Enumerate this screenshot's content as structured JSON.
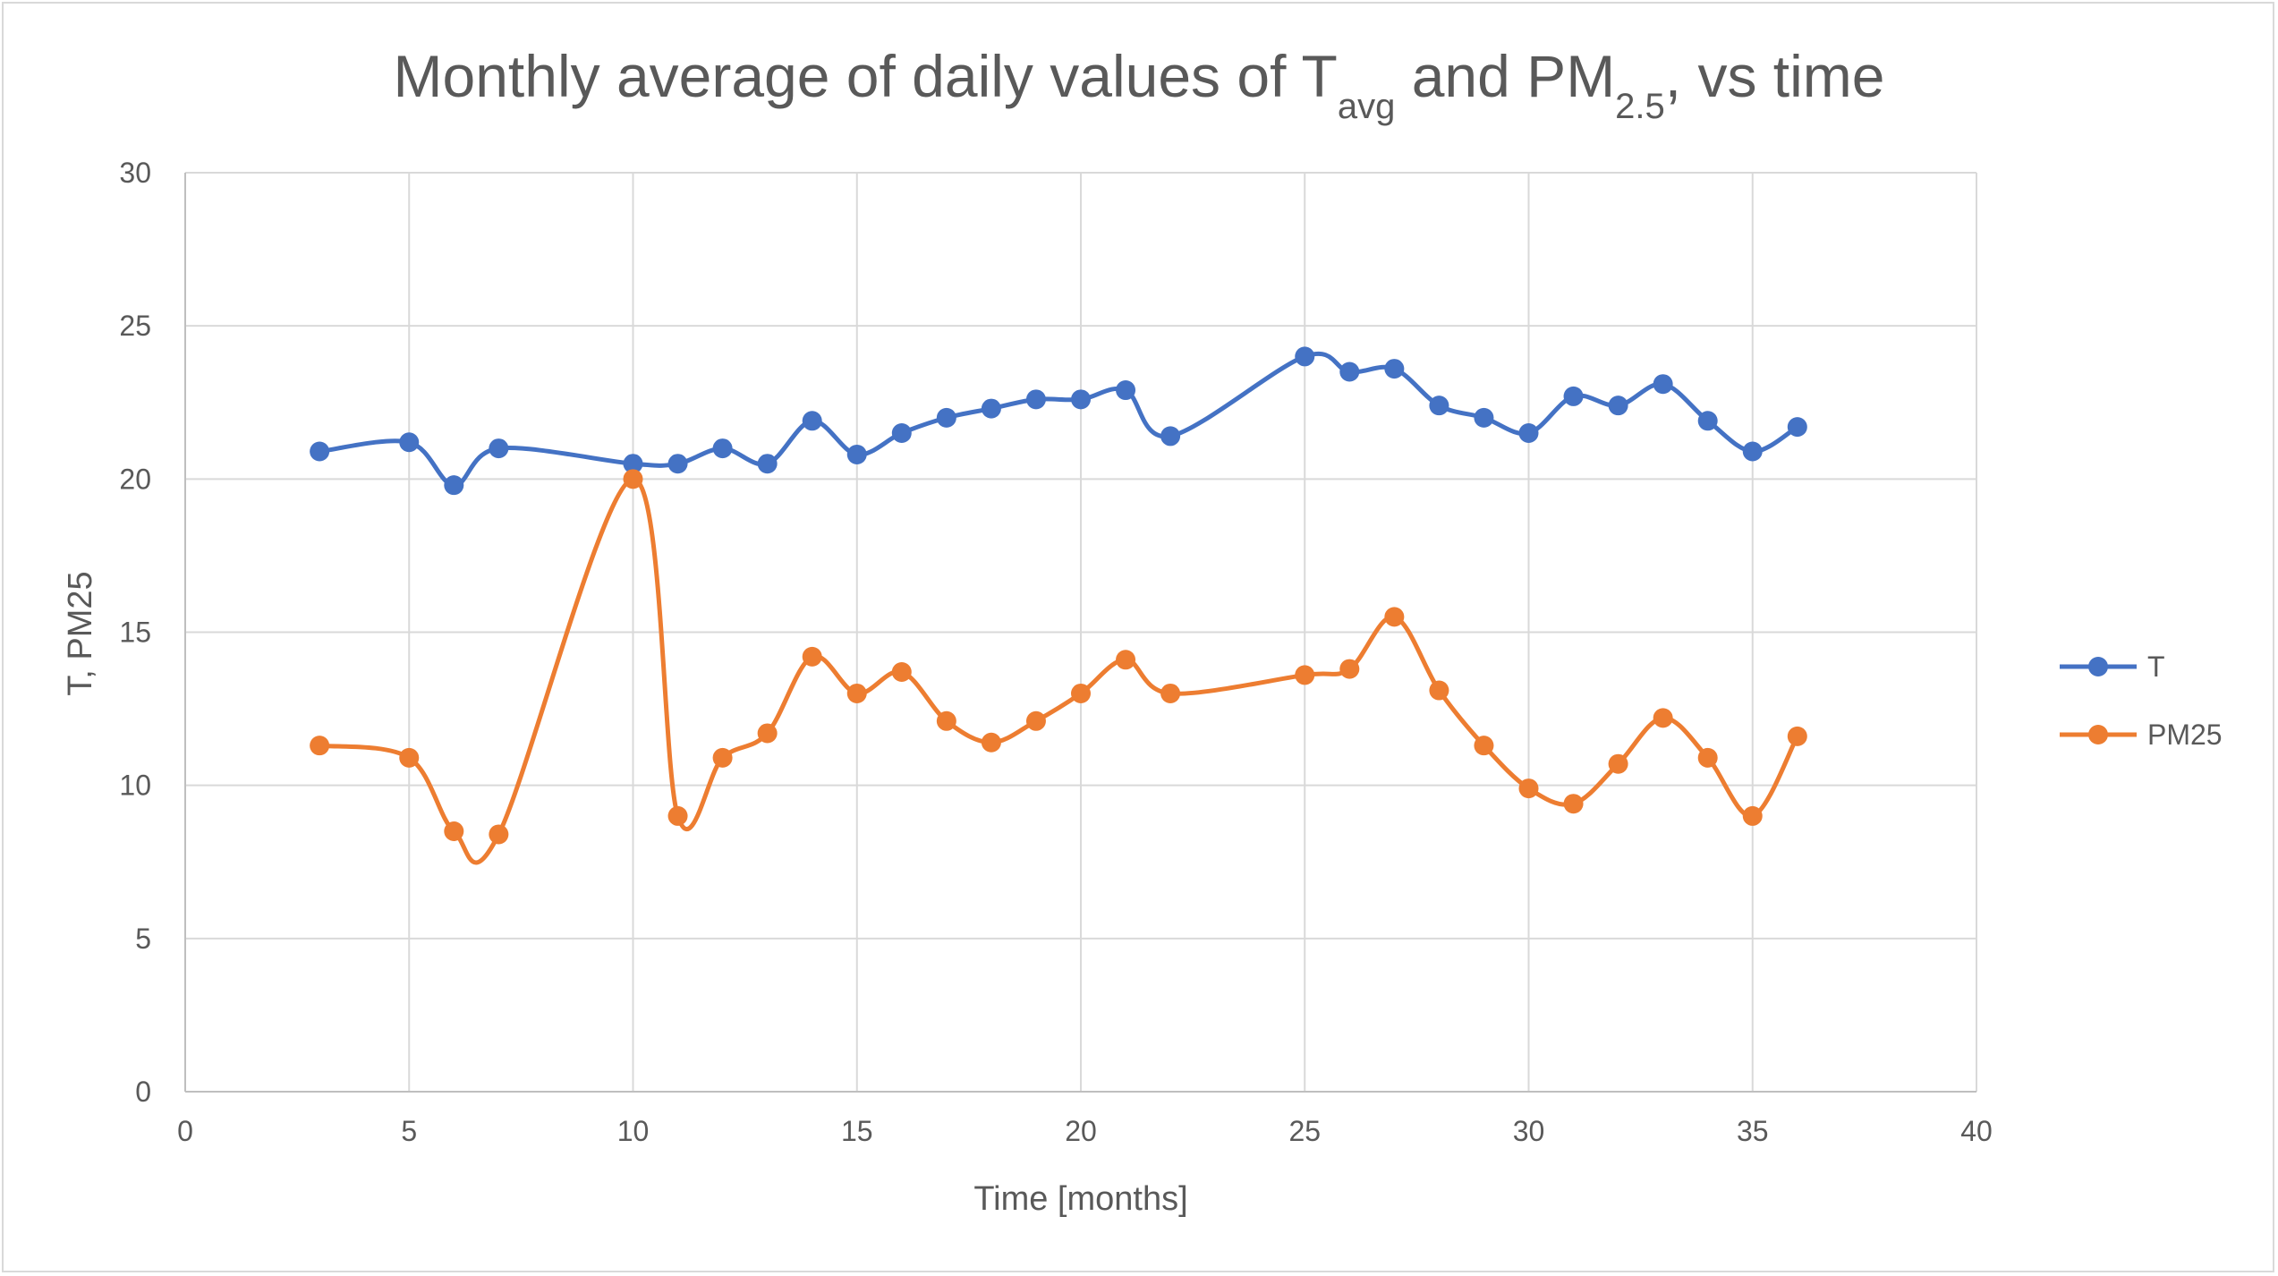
{
  "chart_data": {
    "type": "scatter",
    "title": {
      "part1": "Monthly average of daily values of T",
      "sub1": "avg",
      "part2": " and PM",
      "sub2": "2.5",
      "part3": ", vs time"
    },
    "xlabel": "Time [months]",
    "ylabel": "T, PM25",
    "xlim": [
      0,
      40
    ],
    "ylim": [
      0,
      30
    ],
    "x_ticks": [
      0,
      5,
      10,
      15,
      20,
      25,
      30,
      35,
      40
    ],
    "y_ticks": [
      0,
      5,
      10,
      15,
      20,
      25,
      30
    ],
    "grid": true,
    "legend_position": "right",
    "smoothed_lines": true,
    "series": [
      {
        "name": "T",
        "color": "#4472c4",
        "x": [
          3,
          5,
          6,
          7,
          10,
          11,
          12,
          13,
          14,
          15,
          16,
          17,
          18,
          19,
          20,
          21,
          22,
          25,
          26,
          27,
          28,
          29,
          30,
          31,
          32,
          33,
          34,
          35,
          36
        ],
        "y": [
          20.9,
          21.2,
          19.8,
          21.0,
          20.5,
          20.5,
          21.0,
          20.5,
          21.9,
          20.8,
          21.5,
          22.0,
          22.3,
          22.6,
          22.6,
          22.9,
          21.4,
          24.0,
          23.5,
          23.6,
          22.4,
          22.0,
          21.5,
          22.7,
          22.4,
          23.1,
          21.9,
          20.9,
          21.7
        ]
      },
      {
        "name": "PM25",
        "color": "#ed7d31",
        "x": [
          3,
          5,
          6,
          7,
          10,
          11,
          12,
          13,
          14,
          15,
          16,
          17,
          18,
          19,
          20,
          21,
          22,
          25,
          26,
          27,
          28,
          29,
          30,
          31,
          32,
          33,
          34,
          35,
          36
        ],
        "y": [
          11.3,
          10.9,
          8.5,
          8.4,
          20.0,
          9.0,
          10.9,
          11.7,
          14.2,
          13.0,
          13.7,
          12.1,
          11.4,
          12.1,
          13.0,
          14.1,
          13.0,
          13.6,
          13.8,
          15.5,
          13.1,
          11.3,
          9.9,
          9.4,
          10.7,
          12.2,
          10.9,
          9.0,
          11.6
        ]
      }
    ]
  }
}
